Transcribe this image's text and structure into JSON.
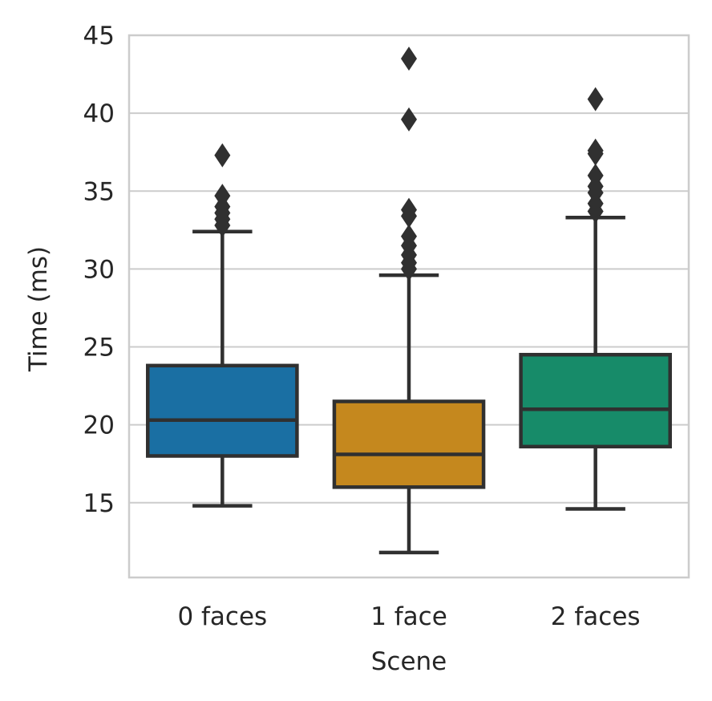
{
  "chart_data": {
    "type": "box",
    "xlabel": "Scene",
    "ylabel": "Time (ms)",
    "ylim": [
      10.2,
      45
    ],
    "yticks": [
      15,
      20,
      25,
      30,
      35,
      40,
      45
    ],
    "grid": "horizontal",
    "categories": [
      "0 faces",
      "1 face",
      "2 faces"
    ],
    "boxes": [
      {
        "label": "0 faces",
        "color": "#1a6fa3",
        "whisker_low": 14.8,
        "q1": 18.0,
        "median": 20.3,
        "q3": 23.8,
        "whisker_high": 32.4,
        "outliers": [
          32.8,
          33.2,
          33.6,
          34.0,
          34.7,
          37.3
        ]
      },
      {
        "label": "1 face",
        "color": "#c5881e",
        "whisker_low": 11.8,
        "q1": 16.0,
        "median": 18.1,
        "q3": 21.5,
        "whisker_high": 29.6,
        "outliers": [
          30.0,
          30.4,
          30.9,
          31.5,
          32.1,
          33.4,
          33.8,
          39.6,
          43.5
        ]
      },
      {
        "label": "2 faces",
        "color": "#178b69",
        "whisker_low": 14.6,
        "q1": 18.6,
        "median": 21.0,
        "q3": 24.5,
        "whisker_high": 33.3,
        "outliers": [
          33.7,
          34.2,
          34.9,
          35.3,
          36.0,
          37.4,
          37.6,
          40.9
        ]
      }
    ]
  }
}
